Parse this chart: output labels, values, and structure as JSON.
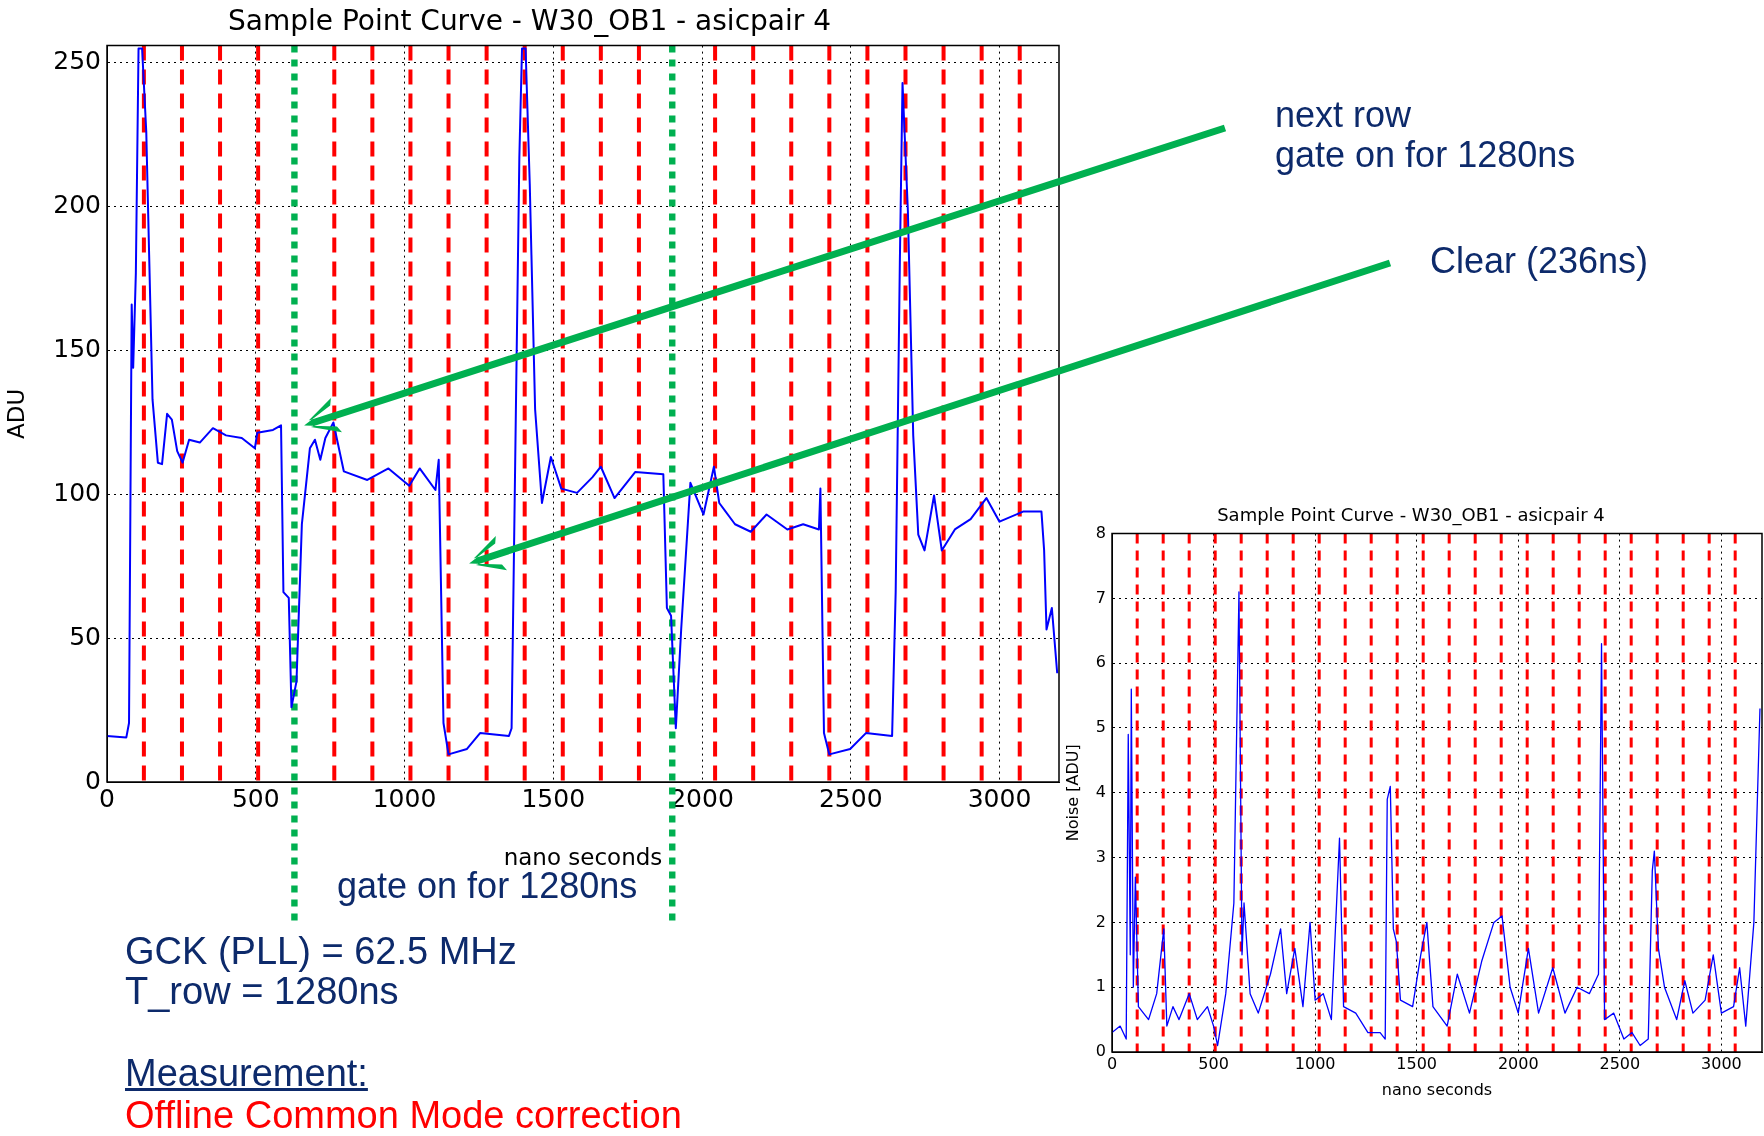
{
  "chart_data": [
    {
      "type": "line",
      "title": "Sample Point Curve - W30_OB1 - asicpair 4",
      "xlabel": "nano seconds",
      "ylabel": "ADU",
      "x": [
        0,
        65,
        74,
        83,
        88,
        97,
        106,
        118,
        132,
        153,
        171,
        185,
        202,
        218,
        236,
        254,
        276,
        312,
        356,
        400,
        453,
        497,
        505,
        558,
        585,
        593,
        611,
        620,
        637,
        655,
        682,
        699,
        717,
        734,
        761,
        796,
        875,
        946,
        1016,
        1051,
        1104,
        1115,
        1131,
        1148,
        1210,
        1254,
        1351,
        1360,
        1374,
        1386,
        1395,
        1407,
        1421,
        1439,
        1462,
        1492,
        1527,
        1580,
        1632,
        1660,
        1706,
        1776,
        1870,
        1882,
        1896,
        1912,
        1930,
        1961,
        2005,
        2040,
        2058,
        2111,
        2164,
        2217,
        2287,
        2340,
        2393,
        2398,
        2410,
        2428,
        2498,
        2551,
        2639,
        2651,
        2665,
        2674,
        2692,
        2710,
        2727,
        2748,
        2780,
        2806,
        2850,
        2903,
        2956,
        3000,
        3079,
        3141,
        3150,
        3158,
        3176,
        3194
      ],
      "series": [
        {
          "color": "#0000ff",
          "values": [
            16,
            15.5,
            20.5,
            166,
            144,
            177,
            255,
            255,
            226,
            133,
            111,
            110.5,
            128,
            126,
            115,
            111,
            119,
            118,
            123,
            120.5,
            119.6,
            116,
            121.4,
            122.4,
            124,
            66,
            64,
            26,
            35,
            89.6,
            116,
            119,
            112,
            119.6,
            125,
            108,
            105,
            109,
            103,
            109,
            101.5,
            112,
            20.5,
            9.6,
            11.5,
            17,
            16,
            18.7,
            126,
            217,
            255,
            255,
            208,
            129.6,
            97,
            113,
            102,
            100.5,
            106,
            109.6,
            98.7,
            107.8,
            107,
            60.5,
            57.8,
            18.7,
            53,
            104,
            93,
            109.6,
            97,
            89.6,
            87,
            93,
            87.8,
            89.6,
            87.8,
            102,
            17,
            9.6,
            11.5,
            17,
            16,
            66,
            180.5,
            243,
            198.7,
            120.5,
            86,
            80.5,
            99.6,
            80.5,
            87.8,
            91.4,
            98.7,
            90.5,
            94,
            94,
            80.5,
            53,
            60.5,
            37.8
          ]
        }
      ],
      "xlim": [
        0,
        3200
      ],
      "xticks": [
        0,
        500,
        1000,
        1500,
        2000,
        2500,
        3000
      ],
      "ylim": [
        0,
        256
      ],
      "yticks": [
        0,
        50,
        100,
        150,
        200,
        250
      ],
      "grid": true,
      "ref_lines": [
        {
          "axis": "x",
          "value": 124,
          "color": "#ff0000",
          "line_style": "dashed"
        },
        {
          "axis": "x",
          "value": 252,
          "color": "#ff0000",
          "line_style": "dashed"
        },
        {
          "axis": "x",
          "value": 380,
          "color": "#ff0000",
          "line_style": "dashed"
        },
        {
          "axis": "x",
          "value": 508,
          "color": "#ff0000",
          "line_style": "dashed"
        },
        {
          "axis": "x",
          "value": 764,
          "color": "#ff0000",
          "line_style": "dashed"
        },
        {
          "axis": "x",
          "value": 892,
          "color": "#ff0000",
          "line_style": "dashed"
        },
        {
          "axis": "x",
          "value": 1020,
          "color": "#ff0000",
          "line_style": "dashed"
        },
        {
          "axis": "x",
          "value": 1148,
          "color": "#ff0000",
          "line_style": "dashed"
        },
        {
          "axis": "x",
          "value": 1276,
          "color": "#ff0000",
          "line_style": "dashed"
        },
        {
          "axis": "x",
          "value": 1404,
          "color": "#ff0000",
          "line_style": "dashed"
        },
        {
          "axis": "x",
          "value": 1532,
          "color": "#ff0000",
          "line_style": "dashed"
        },
        {
          "axis": "x",
          "value": 1660,
          "color": "#ff0000",
          "line_style": "dashed"
        },
        {
          "axis": "x",
          "value": 1788,
          "color": "#ff0000",
          "line_style": "dashed"
        },
        {
          "axis": "x",
          "value": 2044,
          "color": "#ff0000",
          "line_style": "dashed"
        },
        {
          "axis": "x",
          "value": 2172,
          "color": "#ff0000",
          "line_style": "dashed"
        },
        {
          "axis": "x",
          "value": 2300,
          "color": "#ff0000",
          "line_style": "dashed"
        },
        {
          "axis": "x",
          "value": 2428,
          "color": "#ff0000",
          "line_style": "dashed"
        },
        {
          "axis": "x",
          "value": 2556,
          "color": "#ff0000",
          "line_style": "dashed"
        },
        {
          "axis": "x",
          "value": 2684,
          "color": "#ff0000",
          "line_style": "dashed"
        },
        {
          "axis": "x",
          "value": 2812,
          "color": "#ff0000",
          "line_style": "dashed"
        },
        {
          "axis": "x",
          "value": 2940,
          "color": "#ff0000",
          "line_style": "dashed"
        },
        {
          "axis": "x",
          "value": 3068,
          "color": "#ff0000",
          "line_style": "dashed"
        },
        {
          "axis": "x",
          "value": 630,
          "color": "#00b050",
          "line_style": "dotted"
        },
        {
          "axis": "x",
          "value": 1900,
          "color": "#00b050",
          "line_style": "dotted"
        }
      ],
      "annotations": [
        "next row\ngate on for 1280ns",
        "Clear (236ns)",
        "gate on for 1280ns",
        "GCK (PLL) = 62.5 MHz",
        "T_row = 1280ns",
        "Measurement:",
        "Offline Common Mode correction"
      ]
    },
    {
      "type": "line",
      "title": "Sample Point Curve - W30_OB1 - asicpair 4",
      "xlabel": "nano seconds",
      "ylabel": "Noise [ADU]",
      "x": [
        0,
        40,
        70,
        80,
        90,
        95,
        105,
        115,
        130,
        180,
        220,
        255,
        270,
        300,
        330,
        380,
        420,
        470,
        500,
        520,
        560,
        600,
        625,
        640,
        650,
        680,
        720,
        780,
        830,
        860,
        900,
        940,
        975,
        1000,
        1040,
        1080,
        1120,
        1140,
        1200,
        1260,
        1320,
        1345,
        1355,
        1370,
        1385,
        1400,
        1420,
        1480,
        1520,
        1550,
        1580,
        1650,
        1700,
        1760,
        1820,
        1880,
        1920,
        1960,
        2000,
        2050,
        2100,
        2170,
        2230,
        2290,
        2350,
        2395,
        2410,
        2425,
        2470,
        2520,
        2560,
        2600,
        2640,
        2660,
        2670,
        2690,
        2720,
        2780,
        2820,
        2860,
        2920,
        2960,
        3000,
        3060,
        3090,
        3120,
        3160,
        3190
      ],
      "series": [
        {
          "color": "#0000ff",
          "values": [
            0.3,
            0.4,
            0.2,
            4.9,
            1.5,
            5.6,
            1.0,
            2.7,
            0.7,
            0.5,
            0.9,
            1.9,
            0.4,
            0.7,
            0.5,
            0.9,
            0.5,
            0.7,
            0.4,
            0.1,
            0.9,
            2.3,
            7.1,
            1.5,
            2.3,
            0.9,
            0.6,
            1.2,
            1.9,
            0.9,
            1.6,
            0.7,
            2.0,
            0.8,
            0.9,
            0.5,
            3.3,
            0.7,
            0.6,
            0.3,
            0.3,
            0.2,
            3.9,
            4.1,
            1.9,
            1.7,
            0.8,
            0.7,
            1.5,
            2.0,
            0.7,
            0.4,
            1.2,
            0.6,
            1.4,
            2.0,
            2.1,
            1.0,
            0.6,
            1.6,
            0.6,
            1.3,
            0.6,
            1.0,
            0.9,
            1.2,
            6.3,
            0.5,
            0.6,
            0.2,
            0.3,
            0.1,
            0.2,
            2.8,
            3.1,
            1.6,
            1.0,
            0.5,
            1.1,
            0.6,
            0.8,
            1.5,
            0.6,
            0.7,
            1.3,
            0.4,
            2.0,
            5.3
          ]
        }
      ],
      "xlim": [
        0,
        3200
      ],
      "xticks": [
        0,
        500,
        1000,
        1500,
        2000,
        2500,
        3000
      ],
      "ylim": [
        0,
        8
      ],
      "yticks": [
        0,
        1,
        2,
        3,
        4,
        5,
        6,
        7,
        8
      ],
      "grid": true,
      "ref_lines": [
        {
          "axis": "x",
          "value": 124,
          "color": "#ff0000",
          "line_style": "dashed"
        },
        {
          "axis": "x",
          "value": 252,
          "color": "#ff0000",
          "line_style": "dashed"
        },
        {
          "axis": "x",
          "value": 380,
          "color": "#ff0000",
          "line_style": "dashed"
        },
        {
          "axis": "x",
          "value": 508,
          "color": "#ff0000",
          "line_style": "dashed"
        },
        {
          "axis": "x",
          "value": 636,
          "color": "#ff0000",
          "line_style": "dashed"
        },
        {
          "axis": "x",
          "value": 764,
          "color": "#ff0000",
          "line_style": "dashed"
        },
        {
          "axis": "x",
          "value": 892,
          "color": "#ff0000",
          "line_style": "dashed"
        },
        {
          "axis": "x",
          "value": 1020,
          "color": "#ff0000",
          "line_style": "dashed"
        },
        {
          "axis": "x",
          "value": 1148,
          "color": "#ff0000",
          "line_style": "dashed"
        },
        {
          "axis": "x",
          "value": 1276,
          "color": "#ff0000",
          "line_style": "dashed"
        },
        {
          "axis": "x",
          "value": 1404,
          "color": "#ff0000",
          "line_style": "dashed"
        },
        {
          "axis": "x",
          "value": 1532,
          "color": "#ff0000",
          "line_style": "dashed"
        },
        {
          "axis": "x",
          "value": 1660,
          "color": "#ff0000",
          "line_style": "dashed"
        },
        {
          "axis": "x",
          "value": 1788,
          "color": "#ff0000",
          "line_style": "dashed"
        },
        {
          "axis": "x",
          "value": 1916,
          "color": "#ff0000",
          "line_style": "dashed"
        },
        {
          "axis": "x",
          "value": 2044,
          "color": "#ff0000",
          "line_style": "dashed"
        },
        {
          "axis": "x",
          "value": 2172,
          "color": "#ff0000",
          "line_style": "dashed"
        },
        {
          "axis": "x",
          "value": 2300,
          "color": "#ff0000",
          "line_style": "dashed"
        },
        {
          "axis": "x",
          "value": 2428,
          "color": "#ff0000",
          "line_style": "dashed"
        },
        {
          "axis": "x",
          "value": 2556,
          "color": "#ff0000",
          "line_style": "dashed"
        },
        {
          "axis": "x",
          "value": 2684,
          "color": "#ff0000",
          "line_style": "dashed"
        },
        {
          "axis": "x",
          "value": 2812,
          "color": "#ff0000",
          "line_style": "dashed"
        },
        {
          "axis": "x",
          "value": 2940,
          "color": "#ff0000",
          "line_style": "dashed"
        },
        {
          "axis": "x",
          "value": 3068,
          "color": "#ff0000",
          "line_style": "dashed"
        }
      ]
    }
  ]
}
